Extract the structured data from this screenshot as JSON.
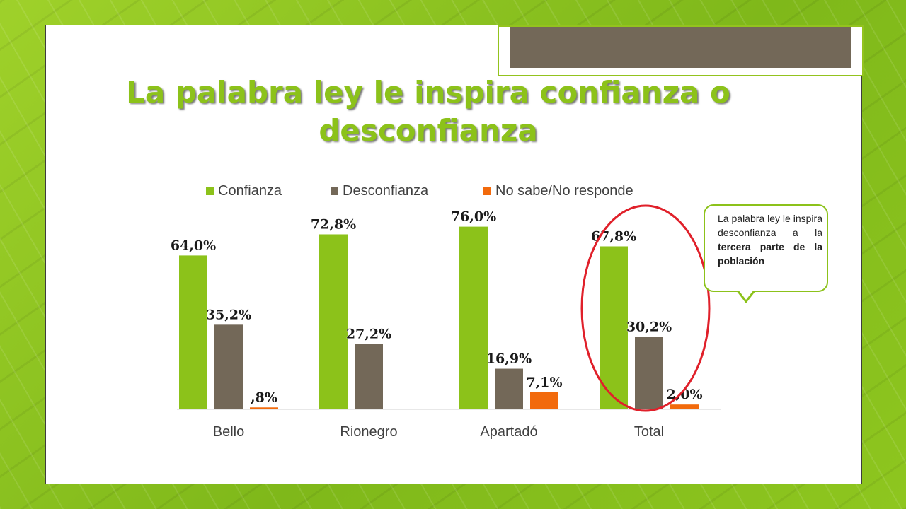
{
  "title": "La palabra ley le inspira confianza o desconfianza",
  "colors": {
    "confianza": "#8cc21a",
    "desconfianza": "#736858",
    "nsnr": "#f26a0c",
    "highlight": "#e0202a"
  },
  "callout": {
    "text_regular": "La palabra ley le inspira desconfianza a la",
    "text_bold": "tercera parte de la población"
  },
  "chart_data": {
    "type": "bar",
    "categories": [
      "Bello",
      "Rionegro",
      "Apartadó",
      "Total"
    ],
    "series": [
      {
        "name": "Confianza",
        "values": [
          64.0,
          72.8,
          76.0,
          67.8
        ],
        "labels": [
          "64,0%",
          "72,8%",
          "76,0%",
          "67,8%"
        ]
      },
      {
        "name": "Desconfianza",
        "values": [
          35.2,
          27.2,
          16.9,
          30.2
        ],
        "labels": [
          "35,2%",
          "27,2%",
          "16,9%",
          "30,2%"
        ]
      },
      {
        "name": "No sabe/No responde",
        "values": [
          0.8,
          null,
          7.1,
          2.0
        ],
        "labels": [
          ",8%",
          "",
          "7,1%",
          "2,0%"
        ]
      }
    ],
    "legend_position": "top",
    "grid": false,
    "highlighted_category": "Total"
  }
}
